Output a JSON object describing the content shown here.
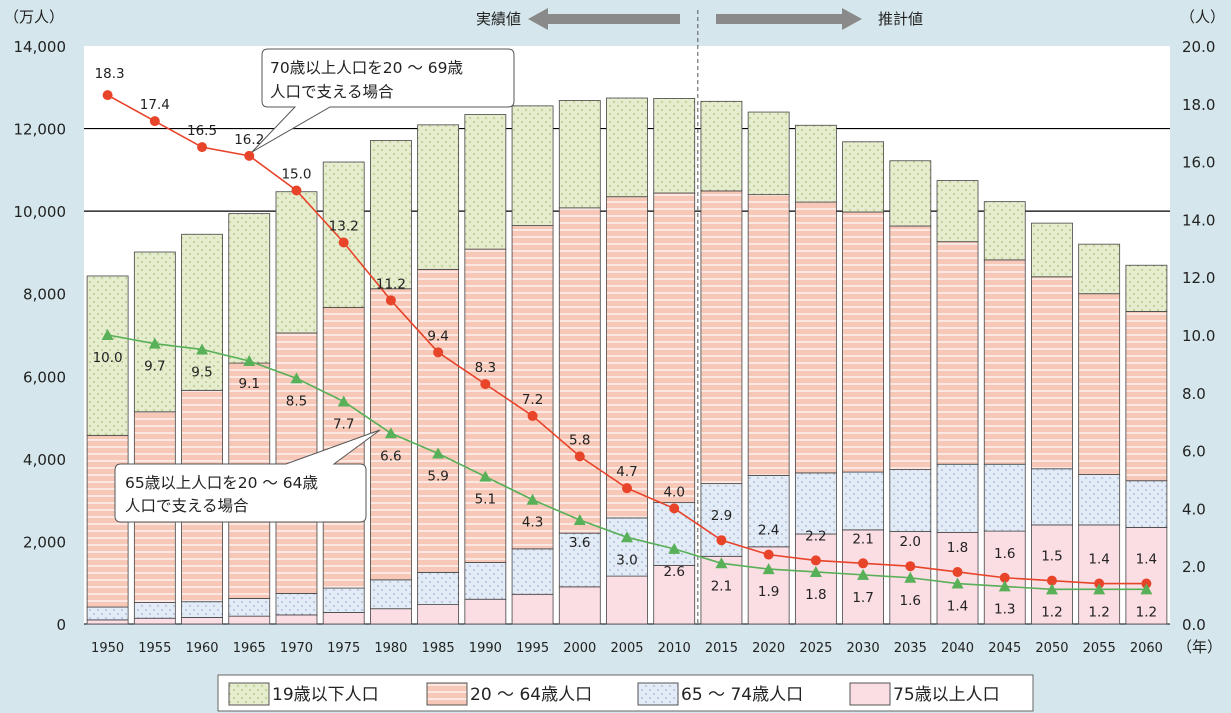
{
  "chart_data": {
    "type": "bar",
    "stacked": true,
    "left_unit": "（万人）",
    "right_unit": "（人）",
    "x_unit": "（年）",
    "header_actual": "実績値",
    "header_projection": "推計値",
    "left_ylim": [
      0,
      14000
    ],
    "left_ticks": [
      "0",
      "2,000",
      "4,000",
      "6,000",
      "8,000",
      "10,000",
      "12,000",
      "14,000"
    ],
    "right_ylim": [
      0,
      20
    ],
    "right_ticks": [
      "0.0",
      "2.0",
      "4.0",
      "6.0",
      "8.0",
      "10.0",
      "12.0",
      "14.0",
      "16.0",
      "18.0",
      "20.0"
    ],
    "categories": [
      "1950",
      "1955",
      "1960",
      "1965",
      "1970",
      "1975",
      "1980",
      "1985",
      "1990",
      "1995",
      "2000",
      "2005",
      "2010",
      "2015",
      "2020",
      "2025",
      "2030",
      "2035",
      "2040",
      "2045",
      "2050",
      "2055",
      "2060"
    ],
    "series": [
      {
        "name": "75歳以上人口",
        "color": "#fbdde4",
        "pattern": "plain",
        "values": [
          100,
          140,
          160,
          190,
          220,
          280,
          370,
          470,
          600,
          720,
          900,
          1160,
          1420,
          1640,
          1870,
          2180,
          2280,
          2240,
          2220,
          2250,
          2400,
          2400,
          2340
        ]
      },
      {
        "name": "65 ～ 74歳人口",
        "color": "#e3ebf6",
        "pattern": "dots",
        "values": [
          310,
          380,
          380,
          430,
          520,
          590,
          700,
          780,
          890,
          1100,
          1300,
          1410,
          1520,
          1760,
          1730,
          1480,
          1400,
          1500,
          1650,
          1620,
          1360,
          1220,
          1130
        ]
      },
      {
        "name": "20 ～ 64歳人口",
        "color": "#f7c8b7",
        "pattern": "stripes",
        "values": [
          4160,
          4620,
          5120,
          5700,
          6310,
          6800,
          7050,
          7340,
          7590,
          7830,
          7880,
          7780,
          7500,
          7090,
          6800,
          6560,
          6300,
          5900,
          5390,
          4950,
          4650,
          4380,
          4100
        ]
      },
      {
        "name": "19歳以下人口",
        "color": "#e6edcf",
        "pattern": "dots",
        "values": [
          3860,
          3870,
          3780,
          3620,
          3420,
          3520,
          3590,
          3500,
          3260,
          2900,
          2600,
          2390,
          2290,
          2170,
          2000,
          1860,
          1700,
          1580,
          1480,
          1410,
          1300,
          1200,
          1120
        ]
      }
    ],
    "lines": [
      {
        "name": "70歳以上人口を20 ～ 69歳人口で支える場合",
        "color": "#e8442a",
        "marker": "circle",
        "values": [
          18.3,
          17.4,
          16.5,
          16.2,
          15.0,
          13.2,
          11.2,
          9.4,
          8.3,
          7.2,
          5.8,
          4.7,
          4.0,
          2.9,
          2.4,
          2.2,
          2.1,
          2.0,
          1.8,
          1.6,
          1.5,
          1.4,
          1.4
        ],
        "labels": [
          "18.3",
          "17.4",
          "16.5",
          "16.2",
          "15.0",
          "13.2",
          "11.2",
          "9.4",
          "8.3",
          "7.2",
          "5.8",
          "4.7",
          "4.0",
          "2.9",
          "2.4",
          "2.2",
          "2.1",
          "2.0",
          "1.8",
          "1.6",
          "1.5",
          "1.4",
          "1.4"
        ]
      },
      {
        "name": "65歳以上人口を20 ～ 64歳人口で支える場合",
        "color": "#58b058",
        "marker": "triangle",
        "values": [
          10.0,
          9.7,
          9.5,
          9.1,
          8.5,
          7.7,
          6.6,
          5.9,
          5.1,
          4.3,
          3.6,
          3.0,
          2.6,
          2.1,
          1.9,
          1.8,
          1.7,
          1.6,
          1.4,
          1.3,
          1.2,
          1.2,
          1.2
        ],
        "labels": [
          "10.0",
          "9.7",
          "9.5",
          "9.1",
          "8.5",
          "7.7",
          "6.6",
          "5.9",
          "5.1",
          "4.3",
          "3.6",
          "3.0",
          "2.6",
          "2.1",
          "1.9",
          "1.8",
          "1.7",
          "1.6",
          "1.4",
          "1.3",
          "1.2",
          "1.2",
          "1.2"
        ]
      }
    ],
    "callout_70": [
      "70歳以上人口を20 ～ 69歳",
      "人口で支える場合"
    ],
    "callout_65": [
      "65歳以上人口を20 ～ 64歳",
      "人口で支える場合"
    ],
    "legend": [
      "19歳以下人口",
      "20 ～ 64歳人口",
      "65 ～ 74歳人口",
      "75歳以上人口"
    ],
    "legend_colors": [
      "#e6edcf",
      "#f7c8b7",
      "#e3ebf6",
      "#fbdde4"
    ],
    "legend_placement": "bottom"
  }
}
